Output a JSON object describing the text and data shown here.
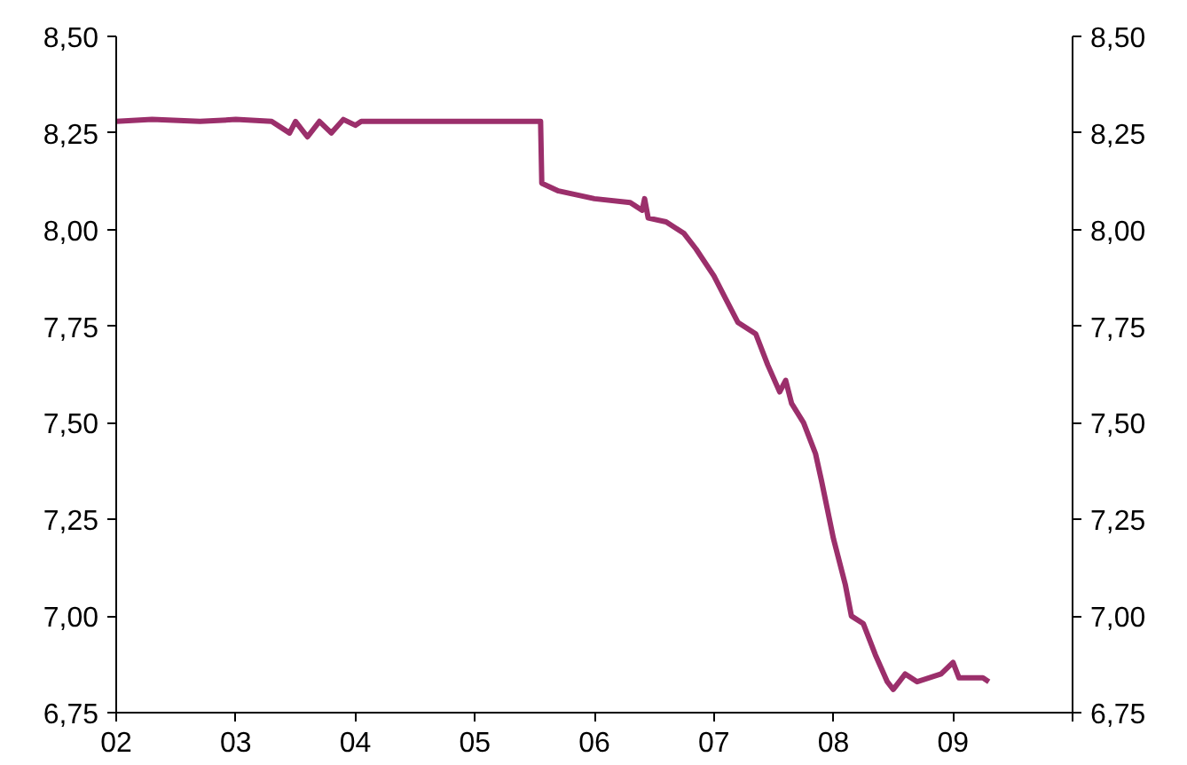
{
  "chart_data": {
    "type": "line",
    "x": [
      2002.0,
      2002.3,
      2002.7,
      2003.0,
      2003.3,
      2003.45,
      2003.5,
      2003.6,
      2003.7,
      2003.8,
      2003.9,
      2004.0,
      2004.05,
      2005.55,
      2005.56,
      2005.7,
      2006.0,
      2006.3,
      2006.4,
      2006.42,
      2006.45,
      2006.6,
      2006.75,
      2006.85,
      2007.0,
      2007.1,
      2007.2,
      2007.35,
      2007.45,
      2007.55,
      2007.6,
      2007.65,
      2007.75,
      2007.85,
      2007.9,
      2008.0,
      2008.1,
      2008.15,
      2008.25,
      2008.35,
      2008.45,
      2008.5,
      2008.6,
      2008.7,
      2008.9,
      2009.0,
      2009.05,
      2009.25,
      2009.3
    ],
    "series": [
      {
        "color": "#9b2f6b",
        "values": [
          8.28,
          8.285,
          8.28,
          8.285,
          8.28,
          8.25,
          8.28,
          8.24,
          8.28,
          8.25,
          8.285,
          8.27,
          8.28,
          8.28,
          8.12,
          8.1,
          8.08,
          8.07,
          8.05,
          8.08,
          8.03,
          8.02,
          7.99,
          7.95,
          7.88,
          7.82,
          7.76,
          7.73,
          7.65,
          7.58,
          7.61,
          7.55,
          7.5,
          7.42,
          7.35,
          7.2,
          7.08,
          7.0,
          6.98,
          6.9,
          6.83,
          6.81,
          6.85,
          6.83,
          6.85,
          6.88,
          6.84,
          6.84,
          6.83
        ]
      }
    ],
    "xlim": [
      2002,
      2010
    ],
    "xticks": [
      {
        "value": 2002,
        "label": "02"
      },
      {
        "value": 2003,
        "label": "03"
      },
      {
        "value": 2004,
        "label": "04"
      },
      {
        "value": 2005,
        "label": "05"
      },
      {
        "value": 2006,
        "label": "06"
      },
      {
        "value": 2007,
        "label": "07"
      },
      {
        "value": 2008,
        "label": "08"
      },
      {
        "value": 2009,
        "label": "09"
      },
      {
        "value": 2010,
        "label": null
      }
    ],
    "ylim": [
      6.75,
      8.5
    ],
    "yticks": [
      {
        "value": 6.75,
        "label": "6,75"
      },
      {
        "value": 7.0,
        "label": "7,00"
      },
      {
        "value": 7.25,
        "label": "7,25"
      },
      {
        "value": 7.5,
        "label": "7,50"
      },
      {
        "value": 7.75,
        "label": "7,75"
      },
      {
        "value": 8.0,
        "label": "8,00"
      },
      {
        "value": 8.25,
        "label": "8,25"
      },
      {
        "value": 8.5,
        "label": "8,50"
      }
    ],
    "y2lim": [
      6.75,
      8.5
    ],
    "y2ticks": [
      {
        "value": 6.75,
        "label": "6,75"
      },
      {
        "value": 7.0,
        "label": "7,00"
      },
      {
        "value": 7.25,
        "label": "7,25"
      },
      {
        "value": 7.5,
        "label": "7,50"
      },
      {
        "value": 7.75,
        "label": "7,75"
      },
      {
        "value": 8.0,
        "label": "8,00"
      },
      {
        "value": 8.25,
        "label": "8,25"
      },
      {
        "value": 8.5,
        "label": "8,50"
      }
    ],
    "grid": false,
    "marker": "none",
    "line_style": "solid"
  }
}
